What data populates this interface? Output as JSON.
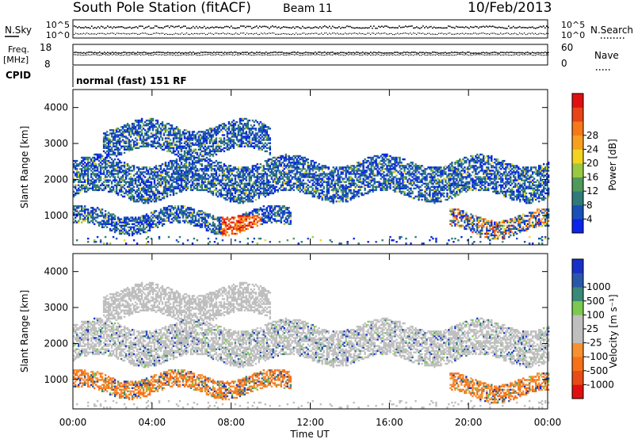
{
  "header": {
    "station": "South Pole Station (fitACF)",
    "beam": "Beam 11",
    "date": "10/Feb/2013"
  },
  "status_panels": {
    "nsky_label": "N.Sky",
    "nsky_ticks": [
      "10^5",
      "10^0"
    ],
    "nsearch_label": "N.Search",
    "nsearch_ticks": [
      "10^5",
      "10^0"
    ],
    "freq_label_1": "Freq.",
    "freq_label_2": "[MHz]",
    "freq_ticks": [
      "18",
      "8"
    ],
    "nave_label": "Nave",
    "nave_ticks": [
      "60",
      "0"
    ],
    "cpid_label": "CPID",
    "cpid_text": "normal (fast) 151 RF"
  },
  "chart_data": [
    {
      "type": "heatmap",
      "title": "",
      "ylabel": "Slant Range [km]",
      "xlabel": "",
      "ylim": [
        180,
        4500
      ],
      "yticks": [
        "1000",
        "2000",
        "3000",
        "4000"
      ],
      "colorbar_label": "Power [dB]",
      "colorbar_ticks": [
        "4",
        "8",
        "12",
        "16",
        "20",
        "24",
        "28"
      ],
      "colorbar_colors": [
        "#0a24e8",
        "#1850b8",
        "#2f7a7a",
        "#4f9a5a",
        "#9ac840",
        "#f2d420",
        "#f7a020",
        "#f77818",
        "#e84418",
        "#e01010"
      ],
      "echo_bands": [
        {
          "x_start": "00:00",
          "x_end": "24:00",
          "range_km": [
            1500,
            2500
          ]
        },
        {
          "x_start": "00:00",
          "x_end": "11:00",
          "range_km": [
            600,
            1100
          ]
        },
        {
          "x_start": "19:00",
          "x_end": "24:00",
          "range_km": [
            500,
            1000
          ]
        },
        {
          "x_start": "01:30",
          "x_end": "10:00",
          "range_km": [
            2700,
            3500
          ]
        }
      ]
    },
    {
      "type": "heatmap",
      "title": "",
      "ylabel": "Slant Range [km]",
      "xlabel": "Time UT",
      "ylim": [
        180,
        4500
      ],
      "xticks": [
        "00:00",
        "04:00",
        "08:00",
        "12:00",
        "16:00",
        "20:00",
        "00:00"
      ],
      "yticks": [
        "1000",
        "2000",
        "3000",
        "4000"
      ],
      "colorbar_label": "Velocity [m s⁻¹]",
      "colorbar_ticks": [
        "1000",
        "500",
        "100",
        "25",
        "-25",
        "-100",
        "-500",
        "-1000"
      ],
      "colorbar_colors": [
        "#1830c8",
        "#2a58a8",
        "#3a8878",
        "#7cc850",
        "#bfbfbf",
        "#bfbfbf",
        "#f79030",
        "#f77018",
        "#e84a18",
        "#e01010"
      ]
    }
  ]
}
